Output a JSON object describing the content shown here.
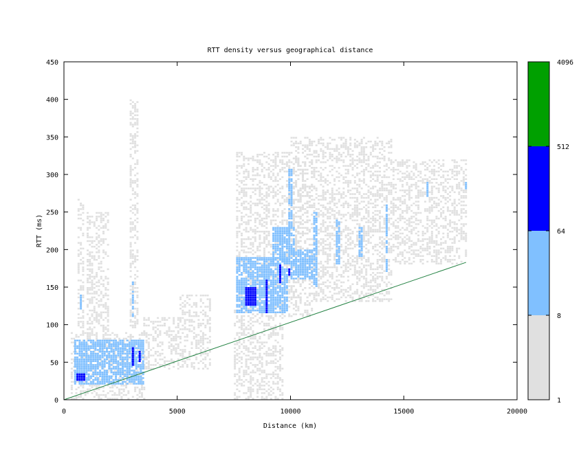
{
  "chart_data": {
    "type": "heatmap",
    "title": "RTT density versus geographical distance",
    "xlabel": "Distance (km)",
    "ylabel": "RTT (ms)",
    "xlim": [
      0,
      20000
    ],
    "ylim": [
      0,
      450
    ],
    "xticks": [
      0,
      5000,
      10000,
      15000,
      20000
    ],
    "yticks": [
      0,
      50,
      100,
      150,
      200,
      250,
      300,
      350,
      400,
      450
    ],
    "grid": false,
    "bin_size": {
      "distance_km": 100,
      "rtt_ms": 2.5
    },
    "colorbar": {
      "scale": "log",
      "range": [
        1,
        4096
      ],
      "ticks": [
        1,
        8,
        64,
        512,
        4096
      ],
      "levels": [
        {
          "from": 1,
          "to": 8,
          "color": "#e0e0e0"
        },
        {
          "from": 8,
          "to": 64,
          "color": "#80c0ff"
        },
        {
          "from": 64,
          "to": 512,
          "color": "#0000ff"
        },
        {
          "from": 512,
          "to": 4096,
          "color": "#00a000"
        }
      ]
    },
    "density_regions": [
      {
        "x": [
          300,
          3600
        ],
        "y": [
          0,
          90
        ],
        "level": 0
      },
      {
        "x": [
          600,
          900
        ],
        "y": [
          90,
          270
        ],
        "level": 0
      },
      {
        "x": [
          1000,
          2000
        ],
        "y": [
          90,
          250
        ],
        "level": 0
      },
      {
        "x": [
          2900,
          3300
        ],
        "y": [
          80,
          400
        ],
        "level": 0
      },
      {
        "x": [
          3500,
          5000
        ],
        "y": [
          40,
          110
        ],
        "level": 0
      },
      {
        "x": [
          5000,
          6500
        ],
        "y": [
          40,
          140
        ],
        "level": 0
      },
      {
        "x": [
          7500,
          9700
        ],
        "y": [
          0,
          120
        ],
        "level": 0
      },
      {
        "x": [
          7600,
          11000
        ],
        "y": [
          110,
          330
        ],
        "level": 0
      },
      {
        "x": [
          10000,
          14500
        ],
        "y": [
          130,
          350
        ],
        "level": 0
      },
      {
        "x": [
          14500,
          17800
        ],
        "y": [
          180,
          320
        ],
        "level": 0
      },
      {
        "x": [
          450,
          3500
        ],
        "y": [
          20,
          80
        ],
        "level": 1
      },
      {
        "x": [
          7600,
          9900
        ],
        "y": [
          115,
          190
        ],
        "level": 1
      },
      {
        "x": [
          9200,
          10200
        ],
        "y": [
          180,
          230
        ],
        "level": 1
      },
      {
        "x": [
          9900,
          10100
        ],
        "y": [
          220,
          310
        ],
        "level": 1
      },
      {
        "x": [
          10000,
          11000
        ],
        "y": [
          160,
          200
        ],
        "level": 1
      },
      {
        "x": [
          11000,
          11200
        ],
        "y": [
          150,
          250
        ],
        "level": 1
      },
      {
        "x": [
          12000,
          12200
        ],
        "y": [
          180,
          240
        ],
        "level": 1
      },
      {
        "x": [
          13000,
          13200
        ],
        "y": [
          190,
          230
        ],
        "level": 1
      },
      {
        "x": [
          14200,
          14300
        ],
        "y": [
          170,
          260
        ],
        "level": 1
      },
      {
        "x": [
          16000,
          16100
        ],
        "y": [
          270,
          290
        ],
        "level": 1
      },
      {
        "x": [
          17700,
          17800
        ],
        "y": [
          280,
          290
        ],
        "level": 1
      },
      {
        "x": [
          700,
          800
        ],
        "y": [
          120,
          140
        ],
        "level": 1
      },
      {
        "x": [
          3000,
          3100
        ],
        "y": [
          110,
          160
        ],
        "level": 1
      },
      {
        "x": [
          550,
          900
        ],
        "y": [
          25,
          35
        ],
        "level": 2
      },
      {
        "x": [
          3000,
          3100
        ],
        "y": [
          45,
          70
        ],
        "level": 2
      },
      {
        "x": [
          3300,
          3400
        ],
        "y": [
          50,
          65
        ],
        "level": 2
      },
      {
        "x": [
          8000,
          8500
        ],
        "y": [
          125,
          150
        ],
        "level": 2
      },
      {
        "x": [
          8900,
          9000
        ],
        "y": [
          115,
          160
        ],
        "level": 2
      },
      {
        "x": [
          9500,
          9600
        ],
        "y": [
          155,
          180
        ],
        "level": 2
      },
      {
        "x": [
          9900,
          10000
        ],
        "y": [
          165,
          175
        ],
        "level": 2
      }
    ],
    "reference_line": {
      "from": [
        0,
        0
      ],
      "to": [
        17750,
        183
      ],
      "color": "#208040"
    }
  }
}
